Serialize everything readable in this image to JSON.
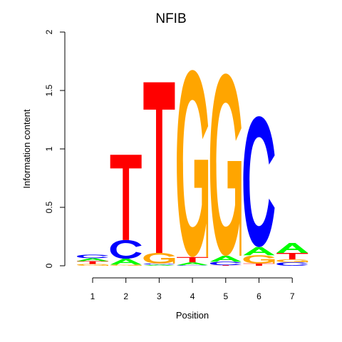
{
  "chart_data": {
    "type": "sequence-logo",
    "title": "NFIB",
    "xlabel": "Position",
    "ylabel": "Information content",
    "ylim": [
      0,
      2
    ],
    "yticks": [
      "0",
      "0.5",
      "1",
      "1.5",
      "2"
    ],
    "xticks": [
      "1",
      "2",
      "3",
      "4",
      "5",
      "6",
      "7"
    ],
    "colors": {
      "A": "#00ff00",
      "C": "#0000ff",
      "G": "#ffa500",
      "T": "#ff0000"
    },
    "positions": [
      {
        "position": "1",
        "stack": [
          {
            "letter": "G",
            "height": 0.015
          },
          {
            "letter": "T",
            "height": 0.025
          },
          {
            "letter": "A",
            "height": 0.025
          },
          {
            "letter": "C",
            "height": 0.03
          }
        ]
      },
      {
        "position": "2",
        "stack": [
          {
            "letter": "G",
            "height": 0.01
          },
          {
            "letter": "A",
            "height": 0.05
          },
          {
            "letter": "C",
            "height": 0.16
          },
          {
            "letter": "T",
            "height": 0.73
          }
        ]
      },
      {
        "position": "3",
        "stack": [
          {
            "letter": "A",
            "height": 0.01
          },
          {
            "letter": "C",
            "height": 0.01
          },
          {
            "letter": "G",
            "height": 0.09
          },
          {
            "letter": "T",
            "height": 1.46
          }
        ]
      },
      {
        "position": "4",
        "stack": [
          {
            "letter": "C",
            "height": 0.005
          },
          {
            "letter": "A",
            "height": 0.025
          },
          {
            "letter": "T",
            "height": 0.045
          },
          {
            "letter": "G",
            "height": 1.6
          }
        ]
      },
      {
        "position": "5",
        "stack": [
          {
            "letter": "T",
            "height": 0.005
          },
          {
            "letter": "C",
            "height": 0.03
          },
          {
            "letter": "A",
            "height": 0.05
          },
          {
            "letter": "G",
            "height": 1.56
          }
        ]
      },
      {
        "position": "6",
        "stack": [
          {
            "letter": "T",
            "height": 0.02
          },
          {
            "letter": "G",
            "height": 0.07
          },
          {
            "letter": "A",
            "height": 0.07
          },
          {
            "letter": "C",
            "height": 1.12
          }
        ]
      },
      {
        "position": "7",
        "stack": [
          {
            "letter": "C",
            "height": 0.03
          },
          {
            "letter": "G",
            "height": 0.025
          },
          {
            "letter": "T",
            "height": 0.055
          },
          {
            "letter": "A",
            "height": 0.085
          }
        ]
      }
    ]
  }
}
